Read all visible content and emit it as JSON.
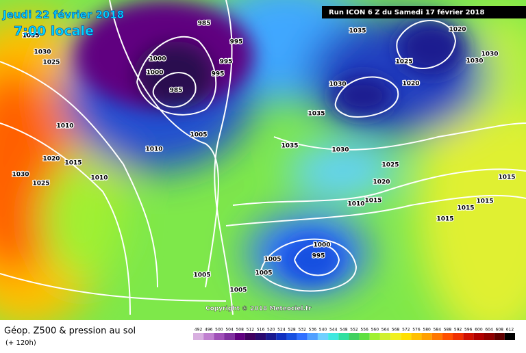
{
  "header": {
    "date": "Jeudi 22 février 2018",
    "time": "7:00 locale",
    "run": "Run ICON 6 Z du Samedi 17 février 2018"
  },
  "copyright": "Copyright © 2018 Meteociel.fr",
  "footer": {
    "title": "Géop. Z500 & pression au sol",
    "lead": "(+ 120h)"
  },
  "isobar_labels": [
    1035,
    1030,
    1025,
    1010,
    1020,
    1015,
    1030,
    1025,
    1010,
    1010,
    1005,
    1000,
    1000,
    985,
    985,
    995,
    995,
    995,
    1035,
    1025,
    1030,
    1030,
    1020,
    1020,
    1030,
    1035,
    1035,
    1030,
    1025,
    1020,
    1015,
    1015,
    1015,
    1015,
    1010,
    1015,
    1000,
    995,
    1005,
    1005,
    1005,
    1005
  ],
  "scale": {
    "values": [
      492,
      496,
      500,
      504,
      508,
      512,
      516,
      520,
      524,
      528,
      532,
      536,
      540,
      544,
      548,
      552,
      556,
      560,
      564,
      568,
      572,
      576,
      580,
      584,
      588,
      592,
      596,
      600,
      604,
      608,
      612
    ],
    "colors": [
      "#d8b0e0",
      "#c080d0",
      "#a050b8",
      "#8030a0",
      "#600080",
      "#400060",
      "#2a0a70",
      "#1a1a90",
      "#1030c0",
      "#1850e0",
      "#3070ff",
      "#50a0ff",
      "#70d0ff",
      "#40e8e0",
      "#30e0a0",
      "#40d060",
      "#60e040",
      "#a0f030",
      "#d0f030",
      "#f0f020",
      "#ffe000",
      "#ffc000",
      "#ffa000",
      "#ff7800",
      "#ff5000",
      "#f03000",
      "#d01000",
      "#b00000",
      "#900000",
      "#600000",
      "#000000"
    ]
  }
}
